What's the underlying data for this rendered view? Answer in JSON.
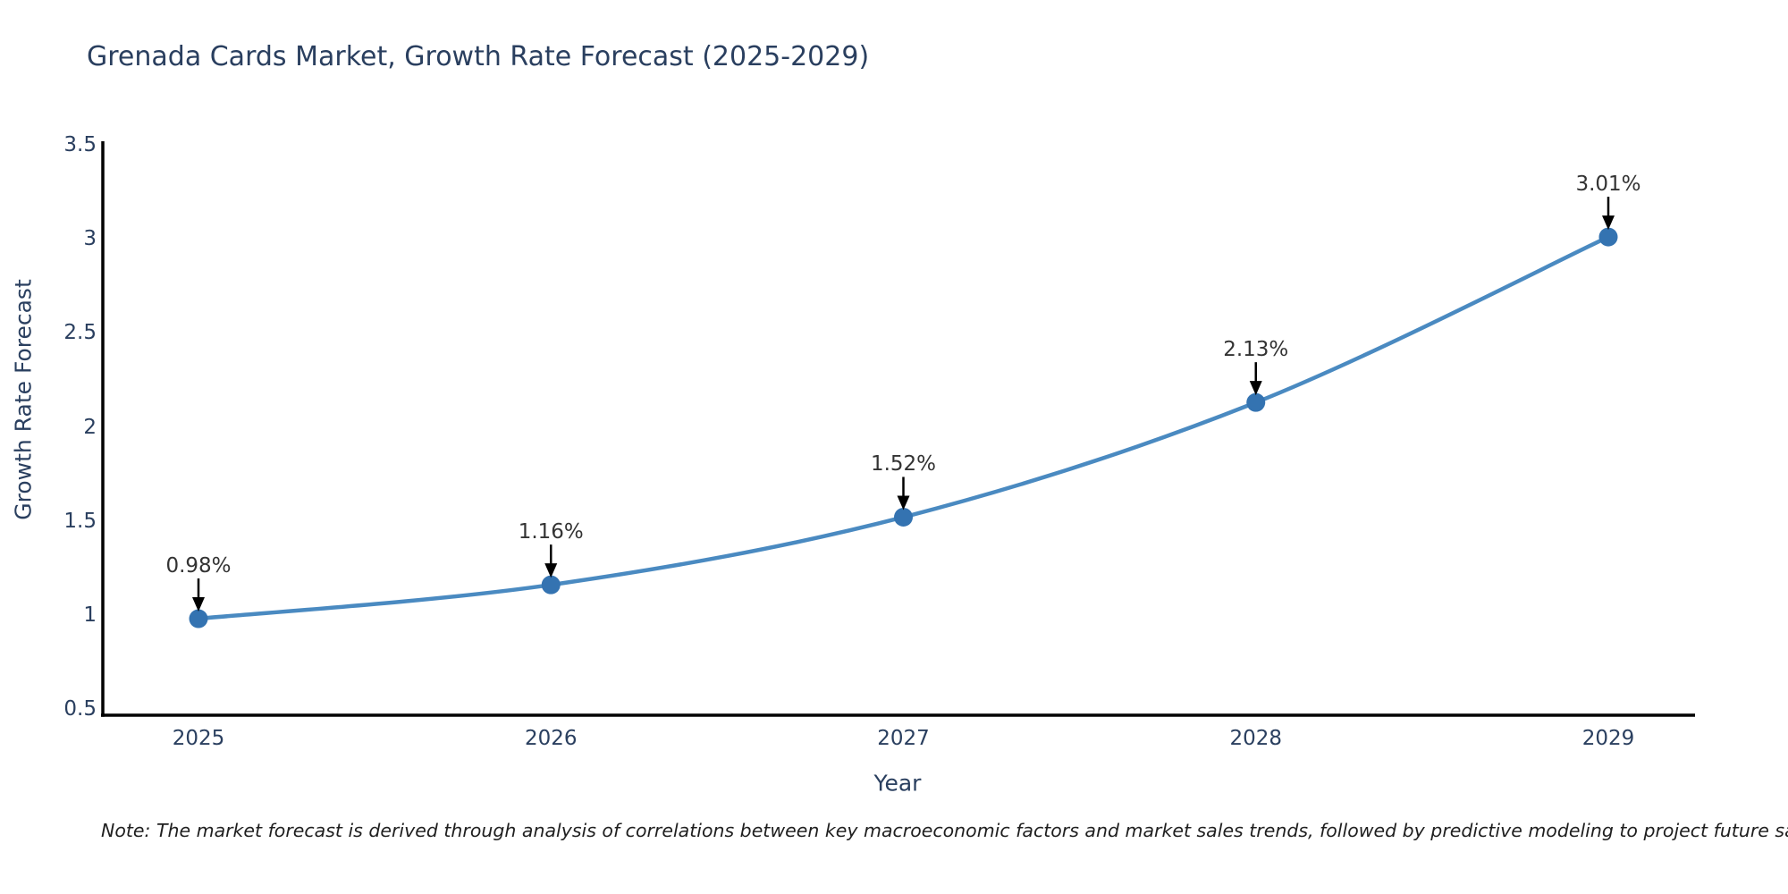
{
  "title": "Grenada Cards Market, Growth Rate Forecast (2025-2029)",
  "note": "Note: The market forecast is derived through analysis of correlations between key macroeconomic factors and market sales trends, followed by predictive modeling to project future sales",
  "chart_data": {
    "type": "line",
    "title": "Grenada Cards Market, Growth Rate Forecast (2025-2029)",
    "xlabel": "Year",
    "ylabel": "Growth Rate Forecast",
    "categories": [
      "2025",
      "2026",
      "2027",
      "2028",
      "2029"
    ],
    "values": [
      0.98,
      1.16,
      1.52,
      2.13,
      3.01
    ],
    "point_labels": [
      "0.98%",
      "1.16%",
      "1.52%",
      "2.13%",
      "3.01%"
    ],
    "yticks": [
      "0.5",
      "1",
      "1.5",
      "2",
      "2.5",
      "3",
      "3.5"
    ],
    "ytick_values": [
      0.5,
      1,
      1.5,
      2,
      2.5,
      3,
      3.5
    ],
    "ylim": [
      0.5,
      3.5
    ],
    "grid": false,
    "legend": "none",
    "marker_style": "circle",
    "annotation_arrows": true,
    "colors": {
      "line": "#4a8ac1",
      "marker": "#3473b1",
      "axis": "#000000",
      "tick_text": "#2a3f5f",
      "title_text": "#2a3f5f",
      "annotation_text": "#333333",
      "background": "#ffffff"
    }
  }
}
